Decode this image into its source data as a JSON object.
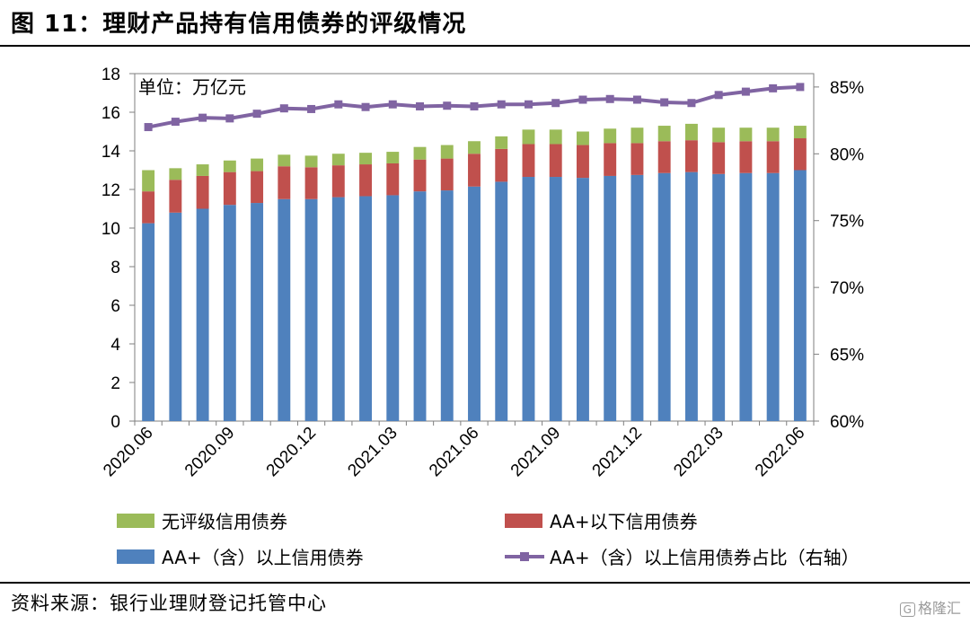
{
  "figure": {
    "title": "图 11：理财产品持有信用债券的评级情况",
    "source": "资料来源：银行业理财登记托管中心",
    "watermark_icon": "G",
    "watermark_text": "格隆汇"
  },
  "chart_data": {
    "type": "bar",
    "stacked": true,
    "unit_label": "单位：万亿元",
    "x": [
      "2020.06",
      "2020.07",
      "2020.08",
      "2020.09",
      "2020.10",
      "2020.11",
      "2020.12",
      "2021.01",
      "2021.02",
      "2021.03",
      "2021.04",
      "2021.05",
      "2021.06",
      "2021.07",
      "2021.08",
      "2021.09",
      "2021.10",
      "2021.11",
      "2021.12",
      "2022.01",
      "2022.02",
      "2022.03",
      "2022.04",
      "2022.05",
      "2022.06"
    ],
    "x_tick_labels": [
      "2020.06",
      "2020.09",
      "2020.12",
      "2021.03",
      "2021.06",
      "2021.09",
      "2021.12",
      "2022.03",
      "2022.06"
    ],
    "y_left": {
      "lim": [
        0,
        18
      ],
      "ticks": [
        0,
        2,
        4,
        6,
        8,
        10,
        12,
        14,
        16,
        18
      ]
    },
    "y_right": {
      "lim": [
        60,
        86
      ],
      "ticks": [
        "60%",
        "65%",
        "70%",
        "75%",
        "80%",
        "85%"
      ],
      "tick_values": [
        60,
        65,
        70,
        75,
        80,
        85
      ]
    },
    "series": [
      {
        "name": "AA+（含）以上信用债券",
        "kind": "bar",
        "color": "#4f81bd",
        "values": [
          10.25,
          10.8,
          11.0,
          11.2,
          11.3,
          11.5,
          11.5,
          11.6,
          11.65,
          11.7,
          11.9,
          11.95,
          12.15,
          12.4,
          12.65,
          12.65,
          12.6,
          12.7,
          12.75,
          12.85,
          12.9,
          12.8,
          12.85,
          12.85,
          13.0
        ]
      },
      {
        "name": "AA+以下信用债券",
        "kind": "bar",
        "color": "#c0504d",
        "values": [
          1.65,
          1.7,
          1.7,
          1.7,
          1.65,
          1.7,
          1.65,
          1.65,
          1.65,
          1.65,
          1.65,
          1.65,
          1.7,
          1.7,
          1.7,
          1.7,
          1.7,
          1.7,
          1.65,
          1.65,
          1.65,
          1.65,
          1.65,
          1.65,
          1.65
        ]
      },
      {
        "name": "无评级信用债券",
        "kind": "bar",
        "color": "#9bbb59",
        "values": [
          1.1,
          0.6,
          0.6,
          0.6,
          0.65,
          0.6,
          0.6,
          0.6,
          0.6,
          0.6,
          0.65,
          0.7,
          0.65,
          0.65,
          0.75,
          0.75,
          0.7,
          0.75,
          0.8,
          0.8,
          0.85,
          0.75,
          0.7,
          0.7,
          0.65
        ]
      },
      {
        "name": "AA+（含）以上信用债券占比（右轴）",
        "kind": "line",
        "axis": "right",
        "color": "#8064a2",
        "values": [
          82.0,
          82.4,
          82.7,
          82.65,
          83.0,
          83.4,
          83.35,
          83.7,
          83.5,
          83.7,
          83.55,
          83.6,
          83.55,
          83.7,
          83.7,
          83.8,
          84.05,
          84.1,
          84.05,
          83.85,
          83.8,
          84.4,
          84.65,
          84.9,
          85.0
        ]
      }
    ],
    "legend_placement": "bottom",
    "grid": false
  }
}
